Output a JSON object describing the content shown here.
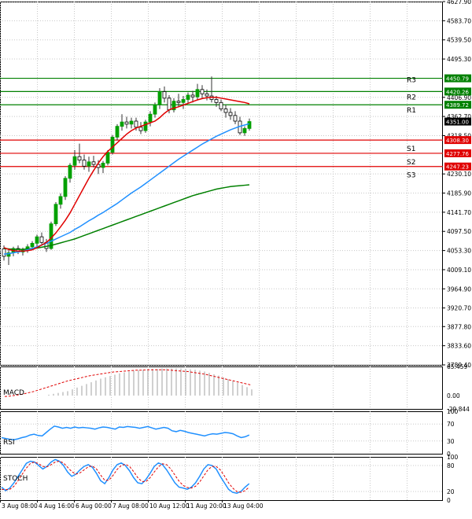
{
  "colors": {
    "background": "#ffffff",
    "grid": "#c8c8c8",
    "frame": "#000000",
    "candle_up": "#00a000",
    "candle_down": "#e00000",
    "candle_wick": "#333333",
    "ma_fast": "#e00000",
    "ma_mid": "#2090ff",
    "ma_slow": "#008000",
    "resistance": "#008000",
    "support": "#e00000",
    "current_price": "#000000",
    "macd_hist": "#b0b0b0",
    "macd_signal": "#e00000",
    "rsi": "#2090ff",
    "stoch_main": "#2090ff",
    "stoch_signal": "#e00000"
  },
  "chart_data": [
    {
      "type": "candlestick",
      "panel": "main",
      "ylim": [
        3789.4,
        4627.9
      ],
      "yticks": [
        "4627.90",
        "4583.70",
        "4539.50",
        "4495.30",
        "4406.90",
        "4362.70",
        "4318.50",
        "4230.10",
        "4185.90",
        "4141.70",
        "4097.50",
        "4053.30",
        "4009.10",
        "3964.90",
        "3920.70",
        "3877.80",
        "3833.60",
        "3789.40"
      ],
      "xticks": [
        "3 Aug 08:00",
        "4 Aug 16:00",
        "6 Aug 00:00",
        "7 Aug 08:00",
        "10 Aug 12:00",
        "11 Aug 20:00",
        "13 Aug 04:00"
      ],
      "current_price": {
        "label": "4351.00",
        "value": 4351.0
      },
      "levels": [
        {
          "name": "R3",
          "value": 4450.79,
          "label": "4450.79",
          "kind": "resistance"
        },
        {
          "name": "R2",
          "value": 4420.26,
          "label": "4420.26",
          "kind": "resistance"
        },
        {
          "name": "R1",
          "value": 4389.72,
          "label": "4389.72",
          "kind": "resistance"
        },
        {
          "name": "S1",
          "value": 4308.3,
          "label": "4308.30",
          "kind": "support"
        },
        {
          "name": "S2",
          "value": 4277.76,
          "label": "4277.76",
          "kind": "support"
        },
        {
          "name": "S3",
          "value": 4247.23,
          "label": "4247.23",
          "kind": "support"
        }
      ],
      "candles": [
        [
          4057,
          4065,
          4030,
          4040
        ],
        [
          4040,
          4055,
          4020,
          4048
        ],
        [
          4048,
          4062,
          4040,
          4058
        ],
        [
          4058,
          4065,
          4045,
          4050
        ],
        [
          4050,
          4060,
          4042,
          4055
        ],
        [
          4055,
          4068,
          4048,
          4062
        ],
        [
          4062,
          4075,
          4055,
          4070
        ],
        [
          4070,
          4090,
          4060,
          4085
        ],
        [
          4085,
          4095,
          4068,
          4072
        ],
        [
          4072,
          4080,
          4050,
          4058
        ],
        [
          4058,
          4120,
          4055,
          4115
        ],
        [
          4115,
          4165,
          4110,
          4160
        ],
        [
          4160,
          4185,
          4150,
          4178
        ],
        [
          4178,
          4225,
          4170,
          4220
        ],
        [
          4220,
          4255,
          4210,
          4250
        ],
        [
          4250,
          4285,
          4240,
          4270
        ],
        [
          4270,
          4300,
          4255,
          4262
        ],
        [
          4262,
          4275,
          4240,
          4248
        ],
        [
          4248,
          4270,
          4235,
          4258
        ],
        [
          4258,
          4272,
          4245,
          4252
        ],
        [
          4252,
          4262,
          4230,
          4245
        ],
        [
          4245,
          4260,
          4232,
          4255
        ],
        [
          4255,
          4285,
          4250,
          4280
        ],
        [
          4280,
          4320,
          4275,
          4315
        ],
        [
          4315,
          4345,
          4308,
          4340
        ],
        [
          4340,
          4368,
          4330,
          4350
        ],
        [
          4350,
          4362,
          4335,
          4345
        ],
        [
          4345,
          4360,
          4335,
          4352
        ],
        [
          4352,
          4360,
          4330,
          4338
        ],
        [
          4338,
          4350,
          4322,
          4330
        ],
        [
          4330,
          4355,
          4325,
          4350
        ],
        [
          4350,
          4375,
          4340,
          4368
        ],
        [
          4368,
          4395,
          4360,
          4390
        ],
        [
          4390,
          4428,
          4380,
          4420
        ],
        [
          4420,
          4432,
          4395,
          4405
        ],
        [
          4405,
          4412,
          4370,
          4378
        ],
        [
          4378,
          4405,
          4372,
          4398
        ],
        [
          4398,
          4415,
          4385,
          4395
        ],
        [
          4395,
          4410,
          4380,
          4402
        ],
        [
          4402,
          4418,
          4392,
          4412
        ],
        [
          4412,
          4422,
          4395,
          4408
        ],
        [
          4408,
          4438,
          4400,
          4425
        ],
        [
          4425,
          4435,
          4405,
          4415
        ],
        [
          4415,
          4425,
          4400,
          4410
        ],
        [
          4410,
          4455,
          4395,
          4402
        ],
        [
          4402,
          4410,
          4385,
          4395
        ],
        [
          4395,
          4402,
          4375,
          4380
        ],
        [
          4380,
          4390,
          4360,
          4372
        ],
        [
          4372,
          4382,
          4355,
          4365
        ],
        [
          4365,
          4375,
          4345,
          4352
        ],
        [
          4352,
          4362,
          4320,
          4325
        ],
        [
          4325,
          4340,
          4318,
          4335
        ],
        [
          4335,
          4358,
          4330,
          4351
        ]
      ],
      "ma_fast": [
        4060,
        4056,
        4053,
        4052,
        4052,
        4053,
        4055,
        4060,
        4066,
        4072,
        4082,
        4094,
        4108,
        4123,
        4140,
        4160,
        4180,
        4200,
        4220,
        4238,
        4255,
        4270,
        4282,
        4292,
        4302,
        4312,
        4322,
        4330,
        4336,
        4340,
        4344,
        4348,
        4352,
        4360,
        4370,
        4378,
        4382,
        4385,
        4389,
        4393,
        4397,
        4401,
        4404,
        4406,
        4407,
        4407,
        4405,
        4403,
        4401,
        4399,
        4397,
        4395,
        4392
      ],
      "ma_mid": [
        4045,
        4046,
        4048,
        4050,
        4052,
        4055,
        4058,
        4062,
        4066,
        4070,
        4075,
        4080,
        4085,
        4090,
        4095,
        4102,
        4108,
        4115,
        4122,
        4128,
        4135,
        4141,
        4148,
        4155,
        4162,
        4170,
        4178,
        4186,
        4193,
        4200,
        4208,
        4216,
        4224,
        4232,
        4240,
        4248,
        4256,
        4264,
        4271,
        4278,
        4285,
        4292,
        4299,
        4305,
        4311,
        4317,
        4322,
        4327,
        4332,
        4336,
        4340,
        4343,
        4346
      ],
      "ma_slow": [
        4058,
        4057,
        4056,
        4056,
        4056,
        4057,
        4058,
        4059,
        4061,
        4063,
        4065,
        4068,
        4071,
        4074,
        4077,
        4080,
        4084,
        4088,
        4092,
        4096,
        4100,
        4104,
        4108,
        4112,
        4116,
        4120,
        4124,
        4128,
        4132,
        4136,
        4140,
        4144,
        4148,
        4152,
        4156,
        4160,
        4164,
        4168,
        4172,
        4176,
        4180,
        4183,
        4186,
        4189,
        4192,
        4195,
        4197,
        4199,
        4201,
        4202,
        4203,
        4204,
        4205
      ]
    },
    {
      "type": "bar",
      "panel": "macd",
      "title": "MACD",
      "ylim": [
        -29.844,
        65.459
      ],
      "yticks": [
        "65.459",
        "0.00",
        "-29.844"
      ],
      "hist": [
        2,
        4,
        6,
        8,
        10,
        14,
        18,
        22,
        26,
        30,
        34,
        38,
        41,
        44,
        47,
        50,
        52,
        54,
        56,
        57,
        58,
        59,
        60,
        60,
        61,
        61,
        61,
        61,
        61,
        60,
        59,
        58,
        56,
        54,
        51,
        48,
        45,
        41,
        37,
        33,
        29,
        24,
        19,
        14
      ],
      "signal": [
        -2,
        -1,
        1,
        3,
        6,
        9,
        13,
        17,
        21,
        25,
        29,
        33,
        36,
        39,
        42,
        45,
        47,
        49,
        51,
        53,
        54,
        55,
        56,
        57,
        57,
        58,
        58,
        58,
        58,
        57,
        56,
        55,
        54,
        52,
        50,
        48,
        45,
        42,
        39,
        36,
        33,
        30,
        27,
        24
      ]
    },
    {
      "type": "line",
      "panel": "rsi",
      "title": "RSI",
      "ylim": [
        0,
        100
      ],
      "yticks": [
        "100",
        "70",
        "30",
        "0"
      ],
      "values": [
        38,
        36,
        34,
        33,
        35,
        38,
        40,
        44,
        46,
        43,
        42,
        50,
        58,
        65,
        63,
        60,
        62,
        60,
        63,
        61,
        62,
        61,
        60,
        58,
        61,
        63,
        62,
        60,
        58,
        63,
        62,
        64,
        63,
        62,
        60,
        62,
        64,
        61,
        58,
        60,
        62,
        60,
        54,
        52,
        55,
        53,
        50,
        48,
        46,
        44,
        42,
        45,
        47,
        46,
        48,
        50,
        49,
        47,
        42,
        38,
        40,
        44
      ]
    },
    {
      "type": "line",
      "panel": "stoch",
      "title": "STOCH",
      "ylim": [
        0,
        100
      ],
      "yticks": [
        "100",
        "80",
        "20",
        "0"
      ],
      "main": [
        30,
        22,
        28,
        40,
        55,
        70,
        85,
        90,
        88,
        80,
        72,
        78,
        88,
        94,
        90,
        80,
        65,
        55,
        60,
        70,
        78,
        82,
        76,
        62,
        45,
        38,
        52,
        70,
        82,
        86,
        80,
        68,
        52,
        40,
        38,
        48,
        62,
        78,
        86,
        82,
        70,
        55,
        40,
        30,
        28,
        25,
        30,
        40,
        55,
        72,
        82,
        80,
        72,
        55,
        40,
        25,
        18,
        16,
        20,
        30,
        38
      ],
      "signal": [
        25,
        24,
        25,
        32,
        45,
        60,
        74,
        85,
        88,
        84,
        78,
        77,
        82,
        88,
        90,
        86,
        76,
        66,
        60,
        63,
        70,
        77,
        79,
        72,
        58,
        46,
        46,
        57,
        71,
        80,
        83,
        78,
        66,
        52,
        43,
        43,
        52,
        65,
        77,
        84,
        82,
        72,
        58,
        44,
        34,
        29,
        28,
        32,
        42,
        56,
        70,
        78,
        78,
        70,
        56,
        40,
        28,
        20,
        18,
        22,
        30
      ]
    }
  ]
}
